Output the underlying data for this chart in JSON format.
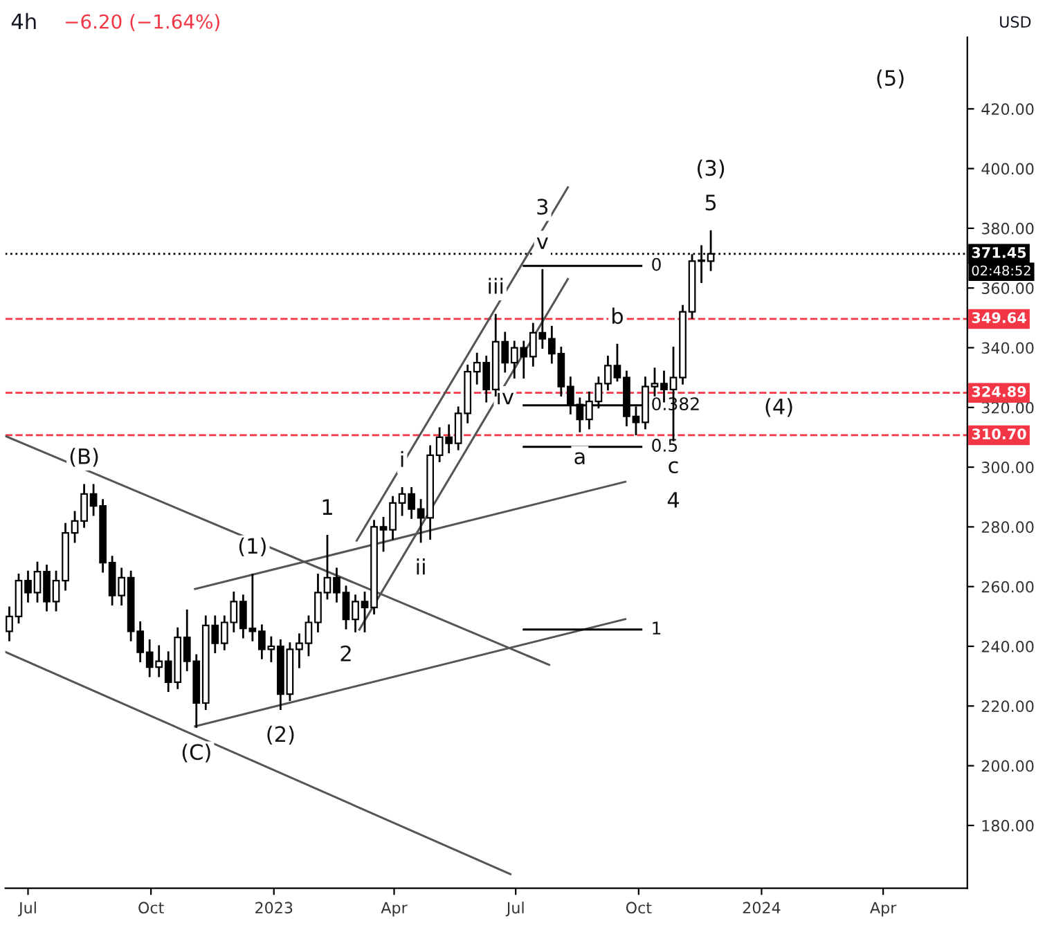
{
  "chart_data": {
    "type": "candlestick",
    "title": "4h",
    "subtitle": "−6.20 (−1.64%)",
    "ylabel": "USD",
    "color": "#000000",
    "x": [
      "2022-06-17",
      "2022-06-24",
      "2022-07-01",
      "2022-07-08",
      "2022-07-15",
      "2022-07-22",
      "2022-07-29",
      "2022-08-05",
      "2022-08-12",
      "2022-08-19",
      "2022-08-26",
      "2022-09-02",
      "2022-09-09",
      "2022-09-16",
      "2022-09-23",
      "2022-09-30",
      "2022-10-07",
      "2022-10-14",
      "2022-10-21",
      "2022-10-28",
      "2022-11-04",
      "2022-11-11",
      "2022-11-18",
      "2022-11-25",
      "2022-12-02",
      "2022-12-09",
      "2022-12-16",
      "2022-12-23",
      "2022-12-30",
      "2023-01-06",
      "2023-01-13",
      "2023-01-20",
      "2023-01-27",
      "2023-02-03",
      "2023-02-10",
      "2023-02-17",
      "2023-02-24",
      "2023-03-03",
      "2023-03-10",
      "2023-03-17",
      "2023-03-24",
      "2023-03-31",
      "2023-04-07",
      "2023-04-14",
      "2023-04-21",
      "2023-04-28",
      "2023-05-05",
      "2023-05-12",
      "2023-05-19",
      "2023-05-26",
      "2023-06-02",
      "2023-06-09",
      "2023-06-16",
      "2023-06-23",
      "2023-06-30",
      "2023-07-07",
      "2023-07-14",
      "2023-07-21",
      "2023-07-28",
      "2023-08-04",
      "2023-08-11",
      "2023-08-18",
      "2023-08-25",
      "2023-09-01",
      "2023-09-08",
      "2023-09-15",
      "2023-09-22",
      "2023-09-29",
      "2023-10-06",
      "2023-10-13",
      "2023-10-20",
      "2023-10-27",
      "2023-11-03",
      "2023-11-10",
      "2023-11-17",
      "2023-11-24"
    ],
    "ohlc": [
      [
        245,
        253,
        242,
        250
      ],
      [
        250,
        264,
        248,
        262
      ],
      [
        262,
        265,
        255,
        258
      ],
      [
        258,
        268,
        255,
        265
      ],
      [
        265,
        267,
        252,
        255
      ],
      [
        255,
        265,
        252,
        262
      ],
      [
        262,
        281,
        259,
        278
      ],
      [
        278,
        285,
        275,
        282
      ],
      [
        282,
        294,
        280,
        291
      ],
      [
        291,
        294,
        284,
        287
      ],
      [
        287,
        289,
        265,
        268
      ],
      [
        268,
        270,
        254,
        257
      ],
      [
        257,
        266,
        254,
        263
      ],
      [
        263,
        265,
        242,
        245
      ],
      [
        245,
        248,
        235,
        238
      ],
      [
        238,
        242,
        230,
        233
      ],
      [
        233,
        240,
        230,
        235
      ],
      [
        235,
        238,
        225,
        228
      ],
      [
        228,
        246,
        226,
        243
      ],
      [
        243,
        252,
        232,
        235
      ],
      [
        235,
        237,
        213,
        221
      ],
      [
        221,
        250,
        219,
        247
      ],
      [
        247,
        250,
        238,
        241
      ],
      [
        241,
        250,
        239,
        248
      ],
      [
        248,
        258,
        245,
        255
      ],
      [
        255,
        257,
        243,
        246
      ],
      [
        246,
        264,
        242,
        245
      ],
      [
        245,
        247,
        236,
        239
      ],
      [
        239,
        243,
        235,
        240
      ],
      [
        240,
        242,
        219,
        224
      ],
      [
        224,
        241,
        222,
        239
      ],
      [
        239,
        244,
        233,
        241
      ],
      [
        241,
        250,
        237,
        248
      ],
      [
        248,
        264,
        245,
        258
      ],
      [
        258,
        277,
        256,
        263
      ],
      [
        263,
        266,
        255,
        258
      ],
      [
        258,
        260,
        246,
        249
      ],
      [
        249,
        257,
        245,
        255
      ],
      [
        255,
        258,
        245,
        253
      ],
      [
        253,
        282,
        251,
        280
      ],
      [
        280,
        283,
        272,
        279
      ],
      [
        279,
        290,
        276,
        288
      ],
      [
        288,
        293,
        284,
        291
      ],
      [
        291,
        293,
        283,
        286
      ],
      [
        286,
        289,
        275,
        283
      ],
      [
        283,
        307,
        276,
        304
      ],
      [
        304,
        313,
        302,
        310
      ],
      [
        310,
        314,
        305,
        308
      ],
      [
        308,
        320,
        306,
        318
      ],
      [
        318,
        334,
        315,
        332
      ],
      [
        332,
        338,
        328,
        335
      ],
      [
        335,
        337,
        322,
        326
      ],
      [
        326,
        351,
        324,
        342
      ],
      [
        342,
        345,
        332,
        335
      ],
      [
        335,
        342,
        330,
        340
      ],
      [
        340,
        342,
        330,
        337
      ],
      [
        337,
        348,
        334,
        345
      ],
      [
        345,
        366,
        340,
        343
      ],
      [
        343,
        347,
        335,
        338
      ],
      [
        338,
        340,
        324,
        327
      ],
      [
        327,
        330,
        318,
        321
      ],
      [
        321,
        323,
        312,
        316
      ],
      [
        316,
        325,
        313,
        322
      ],
      [
        322,
        330,
        320,
        328
      ],
      [
        328,
        337,
        326,
        334
      ],
      [
        334,
        341,
        329,
        330
      ],
      [
        330,
        332,
        314,
        317
      ],
      [
        317,
        320,
        311,
        315
      ],
      [
        315,
        330,
        313,
        327
      ],
      [
        327,
        333,
        324,
        328
      ],
      [
        328,
        332,
        322,
        326
      ],
      [
        326,
        340,
        309,
        330
      ],
      [
        330,
        354,
        328,
        352
      ],
      [
        352,
        371,
        350,
        369
      ],
      [
        369,
        374,
        362,
        369
      ],
      [
        369,
        379,
        366,
        371.45
      ]
    ],
    "series": [
      {
        "type": "line",
        "color": "#555555",
        "x": [
          "2022-06-14",
          "2023-07-26"
        ],
        "values": [
          310.4,
          233.8
        ]
      },
      {
        "type": "line",
        "color": "#555555",
        "x": [
          "2022-06-14",
          "2023-06-27"
        ],
        "values": [
          238.1,
          163.7
        ]
      },
      {
        "type": "line",
        "color": "#555555",
        "x": [
          "2022-11-03",
          "2023-09-21"
        ],
        "values": [
          213.2,
          249.1
        ]
      },
      {
        "type": "line",
        "color": "#555555",
        "x": [
          "2022-11-03",
          "2023-09-21"
        ],
        "values": [
          259.2,
          295.1
        ]
      },
      {
        "type": "line",
        "color": "#555555",
        "x": [
          "2023-03-04",
          "2023-08-09"
        ],
        "values": [
          275.4,
          393.7
        ]
      },
      {
        "type": "line",
        "color": "#555555",
        "x": [
          "2023-03-06",
          "2023-08-09"
        ],
        "values": [
          245.6,
          363.0
        ]
      },
      {
        "type": "line",
        "color": "#000000",
        "x": [
          "2023-07-07",
          "2023-10-03"
        ],
        "values": [
          367.4,
          367.4
        ]
      },
      {
        "type": "line",
        "color": "#000000",
        "x": [
          "2023-07-07",
          "2023-10-03"
        ],
        "values": [
          320.7,
          320.7
        ]
      },
      {
        "type": "line",
        "color": "#000000",
        "x": [
          "2023-07-07",
          "2023-10-03"
        ],
        "values": [
          306.8,
          306.8
        ]
      },
      {
        "type": "line",
        "color": "#000000",
        "x": [
          "2023-07-07",
          "2023-10-03"
        ],
        "values": [
          245.6,
          245.6
        ]
      }
    ],
    "ref_lines": [
      {
        "axis": "y",
        "value": 371.45,
        "label": "371.45",
        "color": "#000000",
        "line_style": "dotted"
      },
      {
        "axis": "y",
        "value": 349.64,
        "label": "349.64",
        "color": "#f23645",
        "line_style": "dashed"
      },
      {
        "axis": "y",
        "value": 324.89,
        "label": "324.89",
        "color": "#f23645",
        "line_style": "dashed"
      },
      {
        "axis": "y",
        "value": 310.7,
        "label": "310.70",
        "color": "#f23645",
        "line_style": "dashed"
      }
    ],
    "annotations": [
      "02:48:52",
      "(5)",
      {
        "text": "(B)",
        "x": "2022-08-12",
        "y": 294
      },
      {
        "text": "(C)",
        "x": "2022-11-04",
        "y": 213
      },
      {
        "text": "(1)",
        "x": "2022-12-16",
        "y": 264
      },
      {
        "text": "(2)",
        "x": "2023-01-06",
        "y": 219
      },
      {
        "text": "5",
        "x": "2023-11-24",
        "y": 379
      },
      {
        "text": "(3)",
        "x": "2023-11-24",
        "y": 379
      },
      {
        "text": "(4)",
        "x": "2024-01-14",
        "y": 310.7
      },
      {
        "text": "1",
        "x": "2023-02-10",
        "y": 277
      },
      {
        "text": "2",
        "x": "2023-02-24",
        "y": 246
      },
      {
        "text": "v",
        "x": "2023-07-21",
        "y": 366
      },
      {
        "text": "3",
        "x": "2023-07-21",
        "y": 366
      },
      {
        "text": "c",
        "x": "2023-10-27",
        "y": 309
      },
      {
        "text": "4",
        "x": "2023-10-27",
        "y": 309
      },
      {
        "text": "i",
        "x": "2023-04-07",
        "y": 293
      },
      {
        "text": "ii",
        "x": "2023-04-21",
        "y": 275
      },
      {
        "text": "iii",
        "x": "2023-06-16",
        "y": 351
      },
      {
        "text": "iv",
        "x": "2023-06-23",
        "y": 332
      },
      {
        "text": "a",
        "x": "2023-08-18",
        "y": 312
      },
      {
        "text": "b",
        "x": "2023-09-15",
        "y": 341
      },
      {
        "text": "0",
        "x": "2023-10-03",
        "y": 367.4
      },
      {
        "text": "0.382",
        "x": "2023-10-03",
        "y": 320.7
      },
      {
        "text": "0.5",
        "x": "2023-10-03",
        "y": 306.8
      },
      {
        "text": "1",
        "x": "2023-10-03",
        "y": 245.6
      }
    ],
    "xlim": [
      "2022-06-14",
      "2024-06-03"
    ],
    "xticks": [
      {
        "value": "2022-07-01",
        "label": "Jul"
      },
      {
        "value": "2022-10-01",
        "label": "Oct"
      },
      {
        "value": "2023-01-01",
        "label": "2023"
      },
      {
        "value": "2023-04-01",
        "label": "Apr"
      },
      {
        "value": "2023-07-01",
        "label": "Jul"
      },
      {
        "value": "2023-10-01",
        "label": "Oct"
      },
      {
        "value": "2024-01-01",
        "label": "2024"
      },
      {
        "value": "2024-04-01",
        "label": "Apr"
      }
    ],
    "ylim": [
      159,
      444
    ],
    "yticks": [
      {
        "value": 180,
        "label": "180.00"
      },
      {
        "value": 200,
        "label": "200.00"
      },
      {
        "value": 220,
        "label": "220.00"
      },
      {
        "value": 240,
        "label": "240.00"
      },
      {
        "value": 260,
        "label": "260.00"
      },
      {
        "value": 280,
        "label": "280.00"
      },
      {
        "value": 300,
        "label": "300.00"
      },
      {
        "value": 320,
        "label": "320.00"
      },
      {
        "value": 340,
        "label": "340.00"
      },
      {
        "value": 360,
        "label": "360.00"
      },
      {
        "value": 380,
        "label": "380.00"
      },
      {
        "value": 400,
        "label": "400.00"
      },
      {
        "value": 420,
        "label": "420.00"
      }
    ],
    "grid": false
  }
}
